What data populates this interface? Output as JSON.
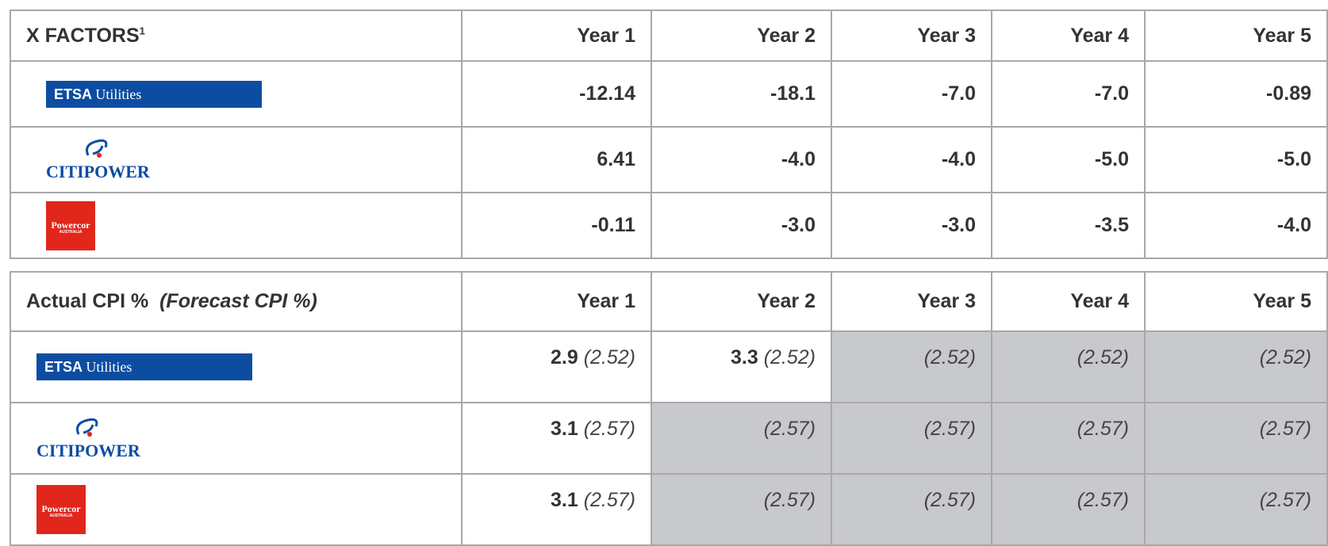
{
  "logos": {
    "etsa": {
      "name": "ETSA",
      "suffix": "Utilities"
    },
    "citipower": {
      "name": "CITIPOWER"
    },
    "powercor": {
      "name": "Powercor",
      "sub": "AUSTRALIA"
    }
  },
  "table1": {
    "title": "X FACTORS",
    "title_sup": "1",
    "years": [
      "Year 1",
      "Year 2",
      "Year 3",
      "Year 4",
      "Year 5"
    ],
    "rows": [
      {
        "company": "etsa",
        "values": [
          "-12.14",
          "-18.1",
          "-7.0",
          "-7.0",
          "-0.89"
        ]
      },
      {
        "company": "citipower",
        "values": [
          "6.41",
          "-4.0",
          "-4.0",
          "-5.0",
          "-5.0"
        ]
      },
      {
        "company": "powercor",
        "values": [
          "-0.11",
          "-3.0",
          "-3.0",
          "-3.5",
          "-4.0"
        ]
      }
    ]
  },
  "table2": {
    "title": "Actual CPI %",
    "subtitle": "(Forecast CPI %)",
    "years": [
      "Year 1",
      "Year 2",
      "Year 3",
      "Year 4",
      "Year 5"
    ],
    "rows": [
      {
        "company": "etsa",
        "actual": [
          "2.9",
          "3.3",
          null,
          null,
          null
        ],
        "forecast": [
          "(2.52)",
          "(2.52)",
          "(2.52)",
          "(2.52)",
          "(2.52)"
        ]
      },
      {
        "company": "citipower",
        "actual": [
          "3.1",
          null,
          null,
          null,
          null
        ],
        "forecast": [
          "(2.57)",
          "(2.57)",
          "(2.57)",
          "(2.57)",
          "(2.57)"
        ]
      },
      {
        "company": "powercor",
        "actual": [
          "3.1",
          null,
          null,
          null,
          null
        ],
        "forecast": [
          "(2.57)",
          "(2.57)",
          "(2.57)",
          "(2.57)",
          "(2.57)"
        ]
      }
    ]
  }
}
